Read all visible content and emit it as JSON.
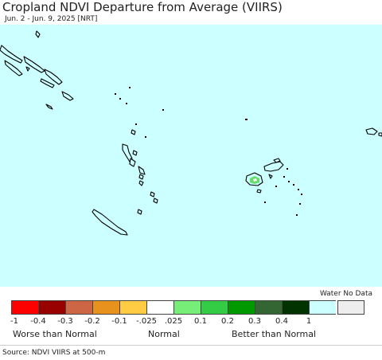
{
  "header": {
    "title": "Cropland NDVI Departure from Average (VIIRS)",
    "subtitle": "Jun. 2 - Jun. 9, 2025 [NRT]"
  },
  "map": {
    "ocean_color": "#ccffff",
    "land_color": "#ccffff",
    "outline_color": "#000000",
    "cropland_positive_color": "#66dd66",
    "cropland_neutral_color": "#ffffff"
  },
  "legend": {
    "no_data_label": "Water No Data",
    "swatches": [
      {
        "color": "#ff0000"
      },
      {
        "color": "#990000"
      },
      {
        "color": "#cc6644"
      },
      {
        "color": "#e8921e"
      },
      {
        "color": "#ffcc44"
      },
      {
        "color": "#ffffff"
      },
      {
        "color": "#77ee77"
      },
      {
        "color": "#33cc44"
      },
      {
        "color": "#009900"
      },
      {
        "color": "#336633"
      },
      {
        "color": "#003300"
      },
      {
        "color": "#ccffff"
      }
    ],
    "no_data_color": "#eeeeee",
    "ticks": [
      "-1",
      "-0.4",
      "-0.3",
      "-0.2",
      "-0.1",
      "-.025",
      ".025",
      "0.1",
      "0.2",
      "0.3",
      "0.4",
      "1"
    ],
    "categories": {
      "worse": "Worse than Normal",
      "normal": "Normal",
      "better": "Better than Normal"
    }
  },
  "footer": {
    "source": "Source: NDVI VIIRS at 500-m"
  }
}
